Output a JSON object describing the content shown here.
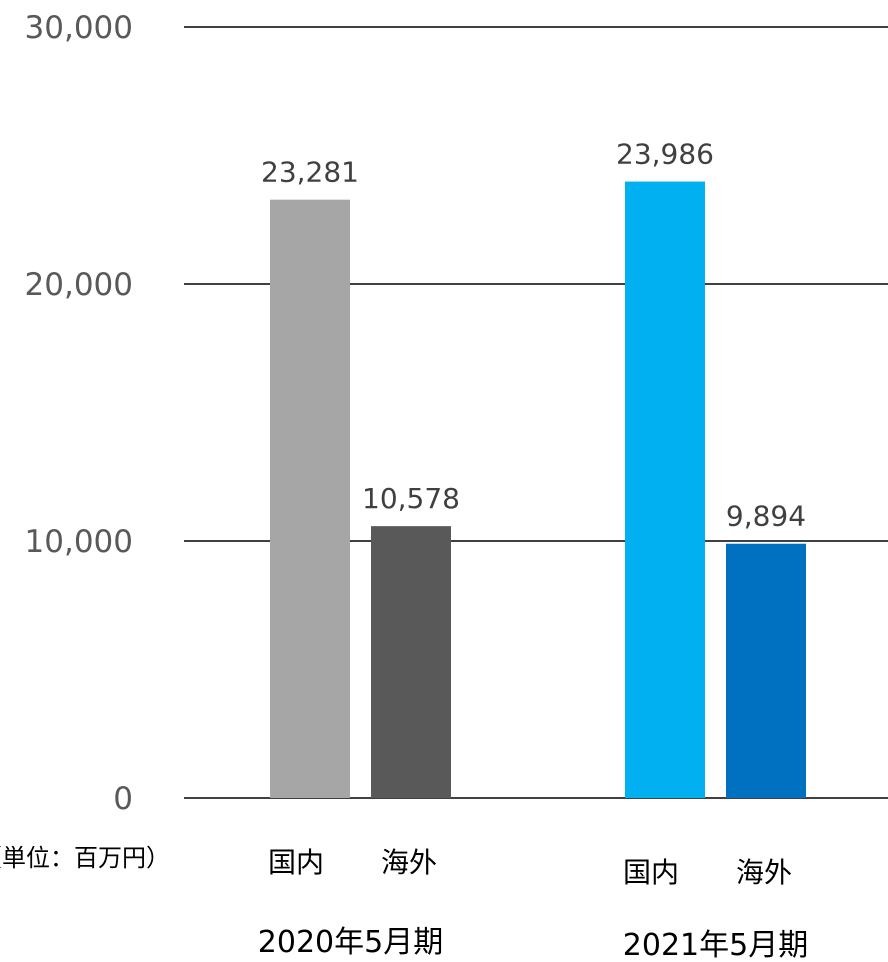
{
  "chart_data": {
    "type": "bar",
    "ylim": [
      0,
      30000
    ],
    "yticks": [
      0,
      10000,
      20000,
      30000
    ],
    "ytick_labels": [
      "0",
      "10,000",
      "20,000",
      "30,000"
    ],
    "grid": true,
    "unit_note": "（単位：百万円）",
    "groups": [
      {
        "period": "2020年5月期",
        "bars": [
          {
            "category": "国内",
            "value": 23281,
            "label": "23,281",
            "color": "#a6a6a6"
          },
          {
            "category": "海外",
            "value": 10578,
            "label": "10,578",
            "color": "#595959"
          }
        ]
      },
      {
        "period": "2021年5月期",
        "bars": [
          {
            "category": "国内",
            "value": 23986,
            "label": "23,986",
            "color": "#00b0f0"
          },
          {
            "category": "海外",
            "value": 9894,
            "label": "9,894",
            "color": "#0070c0"
          }
        ]
      }
    ]
  }
}
